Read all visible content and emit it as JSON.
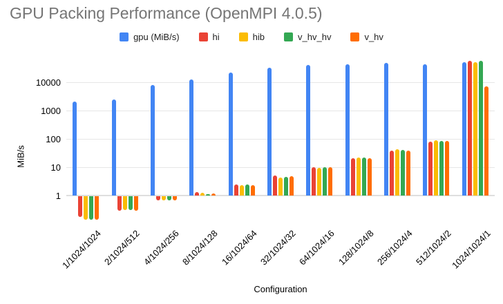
{
  "title": "GPU Packing Performance (OpenMPI 4.0.5)",
  "axes": {
    "x_title": "Configuration",
    "y_title": "MiB/s"
  },
  "chart_data": {
    "type": "bar",
    "scale": "log",
    "grid": true,
    "legend_position": "top",
    "title": "GPU Packing Performance (OpenMPI 4.0.5)",
    "xlabel": "Configuration",
    "ylabel": "MiB/s",
    "y_ticks": [
      1,
      10,
      100,
      1000,
      10000
    ],
    "ylim": [
      0.13,
      60000
    ],
    "categories": [
      "1/1024/1024",
      "2/1024/512",
      "4/1024/256",
      "8/1024/128",
      "16/1024/64",
      "32/1024/32",
      "64/1024/16",
      "128/1024/8",
      "256/1024/4",
      "512/1024/2",
      "1024/1024/1"
    ],
    "series": [
      {
        "name": "gpu (MiB/s)",
        "color": "#4285F4",
        "values": [
          2100,
          2500,
          7800,
          12500,
          22000,
          32000,
          40000,
          43000,
          47000,
          44000,
          52000
        ]
      },
      {
        "name": "hi",
        "color": "#EA4335",
        "values": [
          0.19,
          0.3,
          0.7,
          1.3,
          2.5,
          5.1,
          10,
          21,
          39,
          80,
          56000
        ]
      },
      {
        "name": "hib",
        "color": "#FBBC04",
        "values": [
          0.15,
          0.33,
          0.72,
          1.25,
          2.3,
          4.3,
          9.5,
          22,
          42,
          88,
          52000
        ]
      },
      {
        "name": "v_hv_hv",
        "color": "#34A853",
        "values": [
          0.15,
          0.32,
          0.7,
          1.15,
          2.45,
          4.5,
          10,
          22,
          40,
          84,
          58000
        ]
      },
      {
        "name": "v_hv",
        "color": "#FF6D01",
        "values": [
          0.15,
          0.3,
          0.7,
          1.2,
          2.3,
          4.8,
          10,
          21,
          39,
          85,
          7000
        ]
      }
    ]
  }
}
